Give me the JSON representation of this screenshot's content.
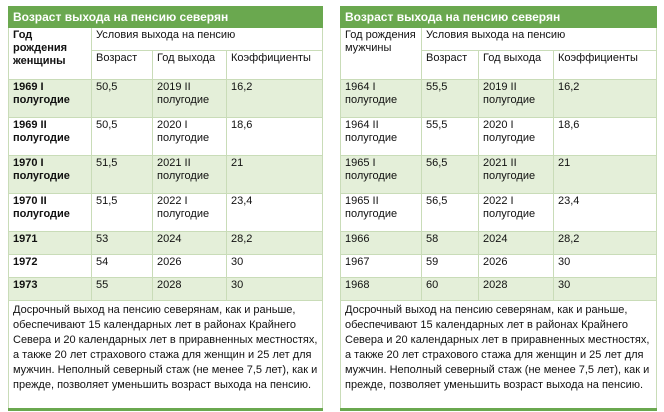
{
  "left": {
    "title": "Возраст выхода на пенсию северян",
    "birth_header": "Год рождения женщины",
    "conditions_header": "Условия выхода на пенсию",
    "columns": [
      "Возраст",
      "Год выхода",
      "Коэффициенты"
    ],
    "rows": [
      [
        "1969 I полугодие",
        "50,5",
        "2019 II полугодие",
        "16,2"
      ],
      [
        "1969 II полугодие",
        "50,5",
        "2020 I полугодие",
        "18,6"
      ],
      [
        "1970 I полугодие",
        "51,5",
        "2021 II полугодие",
        "21"
      ],
      [
        "1970 II полугодие",
        "51,5",
        "2022 I полугодие",
        "23,4"
      ],
      [
        "1971",
        "53",
        "2024",
        "28,2"
      ],
      [
        "1972",
        "54",
        "2026",
        "30"
      ],
      [
        "1973",
        "55",
        "2028",
        "30"
      ]
    ],
    "note": "Досрочный выход на пенсию северянам, как и раньше, обеспечивают 15 календарных лет в районах Крайнего Севера и 20 календарных лет в приравненных местностях, а также 20 лет страхового стажа для женщин и 25 лет для мужчин. Неполный северный стаж (не менее 7,5 лет), как и прежде, позволяет уменьшить возраст выхода на пенсию."
  },
  "right": {
    "title": "Возраст выхода на пенсию северян",
    "birth_header": "Год рождения мужчины",
    "conditions_header": "Условия выхода на пенсию",
    "columns": [
      "Возраст",
      "Год выхода",
      "Коэффициенты"
    ],
    "rows": [
      [
        "1964 I полугодие",
        "55,5",
        "2019 II полугодие",
        "16,2"
      ],
      [
        "1964 II полугодие",
        "55,5",
        "2020 I полугодие",
        "18,6"
      ],
      [
        "1965 I полугодие",
        "56,5",
        "2021 II полугодие",
        "21"
      ],
      [
        "1965 II полугодие",
        "56,5",
        "2022 I полугодие",
        "23,4"
      ],
      [
        "1966",
        "58",
        "2024",
        "28,2"
      ],
      [
        "1967",
        "59",
        "2026",
        "30"
      ],
      [
        "1968",
        "60",
        "2028",
        "30"
      ]
    ],
    "note": "Досрочный выход на пенсию северянам, как и раньше, обеспечивают 15 календарных лет в районах Крайнего Севера и 20 календарных лет в приравненных местностях, а также 20 лет страхового стажа для женщин и 25 лет для мужчин. Неполный северный стаж (не менее 7,5 лет), как и прежде, позволяет уменьшить возраст выхода на пенсию."
  }
}
